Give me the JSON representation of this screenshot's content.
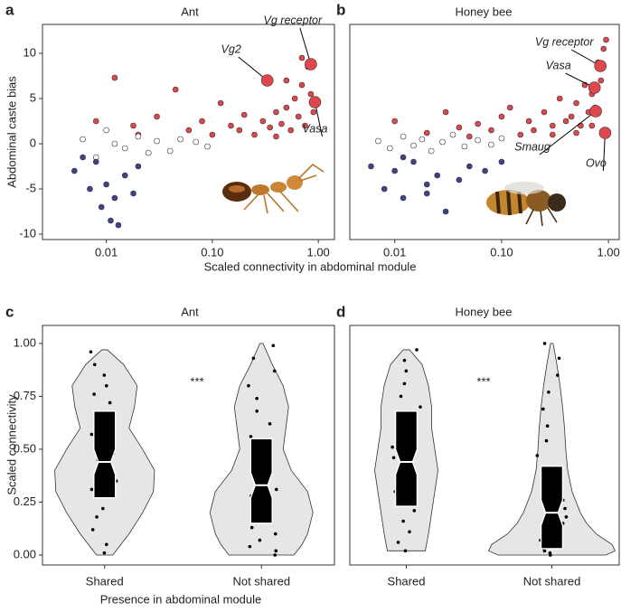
{
  "chart_data": [
    {
      "type": "scatter",
      "panel_label": "a",
      "title": "Ant",
      "y_label": "Abdominal caste bias",
      "x_label": "Scaled connectivity in abdominal module",
      "xscale": "log",
      "xlim": [
        0.0025,
        1.42
      ],
      "ylim": [
        -10.6,
        13.2
      ],
      "xticks": [
        {
          "value": 0.01,
          "label": "0.01"
        },
        {
          "value": 0.1,
          "label": "0.10"
        },
        {
          "value": 1,
          "label": "1.00"
        }
      ],
      "yticks": [
        -10,
        -5,
        0,
        5,
        10
      ],
      "series": [
        {
          "color": "#e0474c",
          "x": [
            0.012,
            0.018,
            0.03,
            0.045,
            0.06,
            0.08,
            0.1,
            0.12,
            0.15,
            0.18,
            0.2,
            0.25,
            0.3,
            0.35,
            0.4,
            0.45,
            0.5,
            0.55,
            0.6,
            0.65,
            0.7,
            0.75,
            0.8,
            0.85,
            0.9,
            0.5,
            0.7,
            0.008,
            0.02,
            0.4
          ],
          "values": [
            7.3,
            2.0,
            3.0,
            6.0,
            1.5,
            2.5,
            1.0,
            4.5,
            2.0,
            1.5,
            3.2,
            1.0,
            2.5,
            1.8,
            3.5,
            2.2,
            4.0,
            1.5,
            5.0,
            3.0,
            6.5,
            2.0,
            8.5,
            5.5,
            3.5,
            7.0,
            9.5,
            2.5,
            1.0,
            0.8
          ]
        },
        {
          "color": "#ffffff",
          "x": [
            0.006,
            0.008,
            0.01,
            0.012,
            0.015,
            0.02,
            0.025,
            0.03,
            0.04,
            0.05,
            0.07,
            0.09
          ],
          "values": [
            0.5,
            -1.5,
            1.5,
            0,
            -0.5,
            0.8,
            -1.0,
            0.3,
            -0.8,
            0.5,
            0.2,
            -0.3
          ]
        },
        {
          "color": "#3f4189",
          "x": [
            0.005,
            0.007,
            0.008,
            0.009,
            0.01,
            0.011,
            0.012,
            0.013,
            0.015,
            0.018,
            0.02,
            0.006
          ],
          "values": [
            -3,
            -5,
            -2,
            -7,
            -4.5,
            -8.5,
            -6,
            -9,
            -3.5,
            -5.5,
            -2.5,
            -1.5
          ]
        }
      ],
      "highlights": [
        {
          "text": "Vg2",
          "x": 0.33,
          "y": 7.0
        },
        {
          "text": "Vg receptor",
          "x": 0.85,
          "y": 8.8
        },
        {
          "text": "Vasa",
          "x": 0.93,
          "y": 4.6
        }
      ]
    },
    {
      "type": "scatter",
      "panel_label": "b",
      "title": "Honey bee",
      "xscale": "log",
      "xlim": [
        0.0038,
        1.26
      ],
      "ylim": [
        -10.6,
        13.2
      ],
      "xticks": [
        {
          "value": 0.01,
          "label": "0.01"
        },
        {
          "value": 0.1,
          "label": "0.10"
        },
        {
          "value": 1,
          "label": "1.00"
        }
      ],
      "series": [
        {
          "color": "#e0474c",
          "x": [
            0.01,
            0.02,
            0.03,
            0.04,
            0.05,
            0.06,
            0.08,
            0.1,
            0.12,
            0.15,
            0.18,
            0.2,
            0.25,
            0.3,
            0.35,
            0.4,
            0.45,
            0.5,
            0.55,
            0.6,
            0.65,
            0.7,
            0.75,
            0.8,
            0.85,
            0.9,
            0.95,
            0.3,
            0.5,
            0.7
          ],
          "values": [
            2.5,
            1.2,
            3.5,
            1.8,
            0.8,
            2.2,
            1.5,
            3.0,
            4.0,
            1.0,
            2.5,
            1.5,
            3.5,
            2.0,
            5.0,
            2.5,
            3.0,
            4.5,
            2.0,
            6.5,
            3.5,
            5.5,
            4.0,
            9.0,
            7.0,
            10.5,
            11.5,
            1.0,
            1.2,
            2.0
          ]
        },
        {
          "color": "#ffffff",
          "x": [
            0.007,
            0.009,
            0.012,
            0.015,
            0.018,
            0.022,
            0.028,
            0.035,
            0.045,
            0.06,
            0.08,
            0.1
          ],
          "values": [
            0.3,
            -0.5,
            0.8,
            -0.2,
            0.5,
            -0.8,
            0.2,
            1.0,
            -0.3,
            0.4,
            -0.1,
            0.6
          ]
        },
        {
          "color": "#3f4189",
          "x": [
            0.006,
            0.008,
            0.01,
            0.012,
            0.015,
            0.02,
            0.025,
            0.03,
            0.04,
            0.05,
            0.07,
            0.1,
            0.012,
            0.02
          ],
          "values": [
            -2.5,
            -5,
            -3,
            -6,
            -2,
            -4.5,
            -3.5,
            -7.5,
            -4,
            -2.5,
            -3,
            -2,
            -1.5,
            -5.5
          ]
        }
      ],
      "highlights": [
        {
          "text": "Vg receptor",
          "x": 0.84,
          "y": 8.6
        },
        {
          "text": "Vasa",
          "x": 0.74,
          "y": 6.2
        },
        {
          "text": "Smaug",
          "x": 0.76,
          "y": 3.6
        },
        {
          "text": "Ovo",
          "x": 0.93,
          "y": 1.2
        }
      ]
    },
    {
      "type": "violin",
      "panel_label": "c",
      "title": "Ant",
      "y_label": "Scaled connectivity",
      "x_label": "Presence in abdominal module",
      "annotation": "***",
      "ylim": [
        -0.047,
        1.085
      ],
      "yticks": [
        {
          "value": 0,
          "label": "0.00"
        },
        {
          "value": 0.25,
          "label": "0.25"
        },
        {
          "value": 0.5,
          "label": "0.50"
        },
        {
          "value": 0.75,
          "label": "0.75"
        },
        {
          "value": 1,
          "label": "1.00"
        }
      ],
      "categories": [
        "Shared",
        "Not shared"
      ],
      "groups": [
        {
          "violin": {
            "y": [
              0,
              0.05,
              0.1,
              0.2,
              0.3,
              0.4,
              0.5,
              0.6,
              0.7,
              0.8,
              0.9,
              0.97
            ],
            "density": [
              0.15,
              0.3,
              0.45,
              0.7,
              0.9,
              0.92,
              0.7,
              0.45,
              0.55,
              0.6,
              0.35,
              0.05
            ]
          },
          "box": {
            "q1": 0.27,
            "median": 0.44,
            "q3": 0.68
          },
          "points": [
            0.01,
            0.05,
            0.12,
            0.18,
            0.22,
            0.28,
            0.31,
            0.35,
            0.38,
            0.41,
            0.45,
            0.48,
            0.52,
            0.57,
            0.62,
            0.66,
            0.72,
            0.76,
            0.8,
            0.85,
            0.9,
            0.96
          ]
        },
        {
          "violin": {
            "y": [
              0,
              0.05,
              0.1,
              0.2,
              0.3,
              0.4,
              0.5,
              0.6,
              0.7,
              0.8,
              0.9,
              1.0
            ],
            "density": [
              0.6,
              0.75,
              0.85,
              0.95,
              0.85,
              0.55,
              0.4,
              0.45,
              0.5,
              0.4,
              0.2,
              0.03
            ]
          },
          "box": {
            "q1": 0.15,
            "median": 0.33,
            "q3": 0.55
          },
          "points": [
            0.0,
            0.02,
            0.04,
            0.07,
            0.1,
            0.13,
            0.16,
            0.19,
            0.22,
            0.25,
            0.28,
            0.31,
            0.35,
            0.4,
            0.45,
            0.5,
            0.56,
            0.62,
            0.68,
            0.74,
            0.8,
            0.87,
            0.93,
            0.99
          ]
        }
      ]
    },
    {
      "type": "violin",
      "panel_label": "d",
      "title": "Honey bee",
      "annotation": "***",
      "ylim": [
        -0.047,
        1.085
      ],
      "categories": [
        "Shared",
        "Not shared"
      ],
      "groups": [
        {
          "violin": {
            "y": [
              0.02,
              0.1,
              0.2,
              0.3,
              0.4,
              0.5,
              0.6,
              0.7,
              0.8,
              0.9,
              0.97
            ],
            "density": [
              0.3,
              0.35,
              0.4,
              0.45,
              0.5,
              0.45,
              0.4,
              0.4,
              0.35,
              0.25,
              0.05
            ]
          },
          "box": {
            "q1": 0.23,
            "median": 0.44,
            "q3": 0.68
          },
          "points": [
            0.02,
            0.06,
            0.11,
            0.16,
            0.21,
            0.26,
            0.3,
            0.35,
            0.4,
            0.46,
            0.51,
            0.55,
            0.6,
            0.65,
            0.7,
            0.75,
            0.81,
            0.87,
            0.92,
            0.97
          ]
        },
        {
          "violin": {
            "y": [
              0,
              0.02,
              0.05,
              0.1,
              0.15,
              0.2,
              0.3,
              0.4,
              0.5,
              0.6,
              0.7,
              0.8,
              0.9,
              1.0
            ],
            "density": [
              0.85,
              1.0,
              0.95,
              0.7,
              0.55,
              0.45,
              0.32,
              0.25,
              0.22,
              0.2,
              0.17,
              0.13,
              0.08,
              0.02
            ]
          },
          "box": {
            "q1": 0.03,
            "median": 0.2,
            "q3": 0.42
          },
          "points": [
            0.0,
            0.01,
            0.02,
            0.03,
            0.05,
            0.07,
            0.09,
            0.12,
            0.15,
            0.18,
            0.22,
            0.26,
            0.3,
            0.35,
            0.41,
            0.47,
            0.54,
            0.61,
            0.69,
            0.77,
            0.85,
            0.93,
            1.0
          ]
        }
      ]
    }
  ]
}
